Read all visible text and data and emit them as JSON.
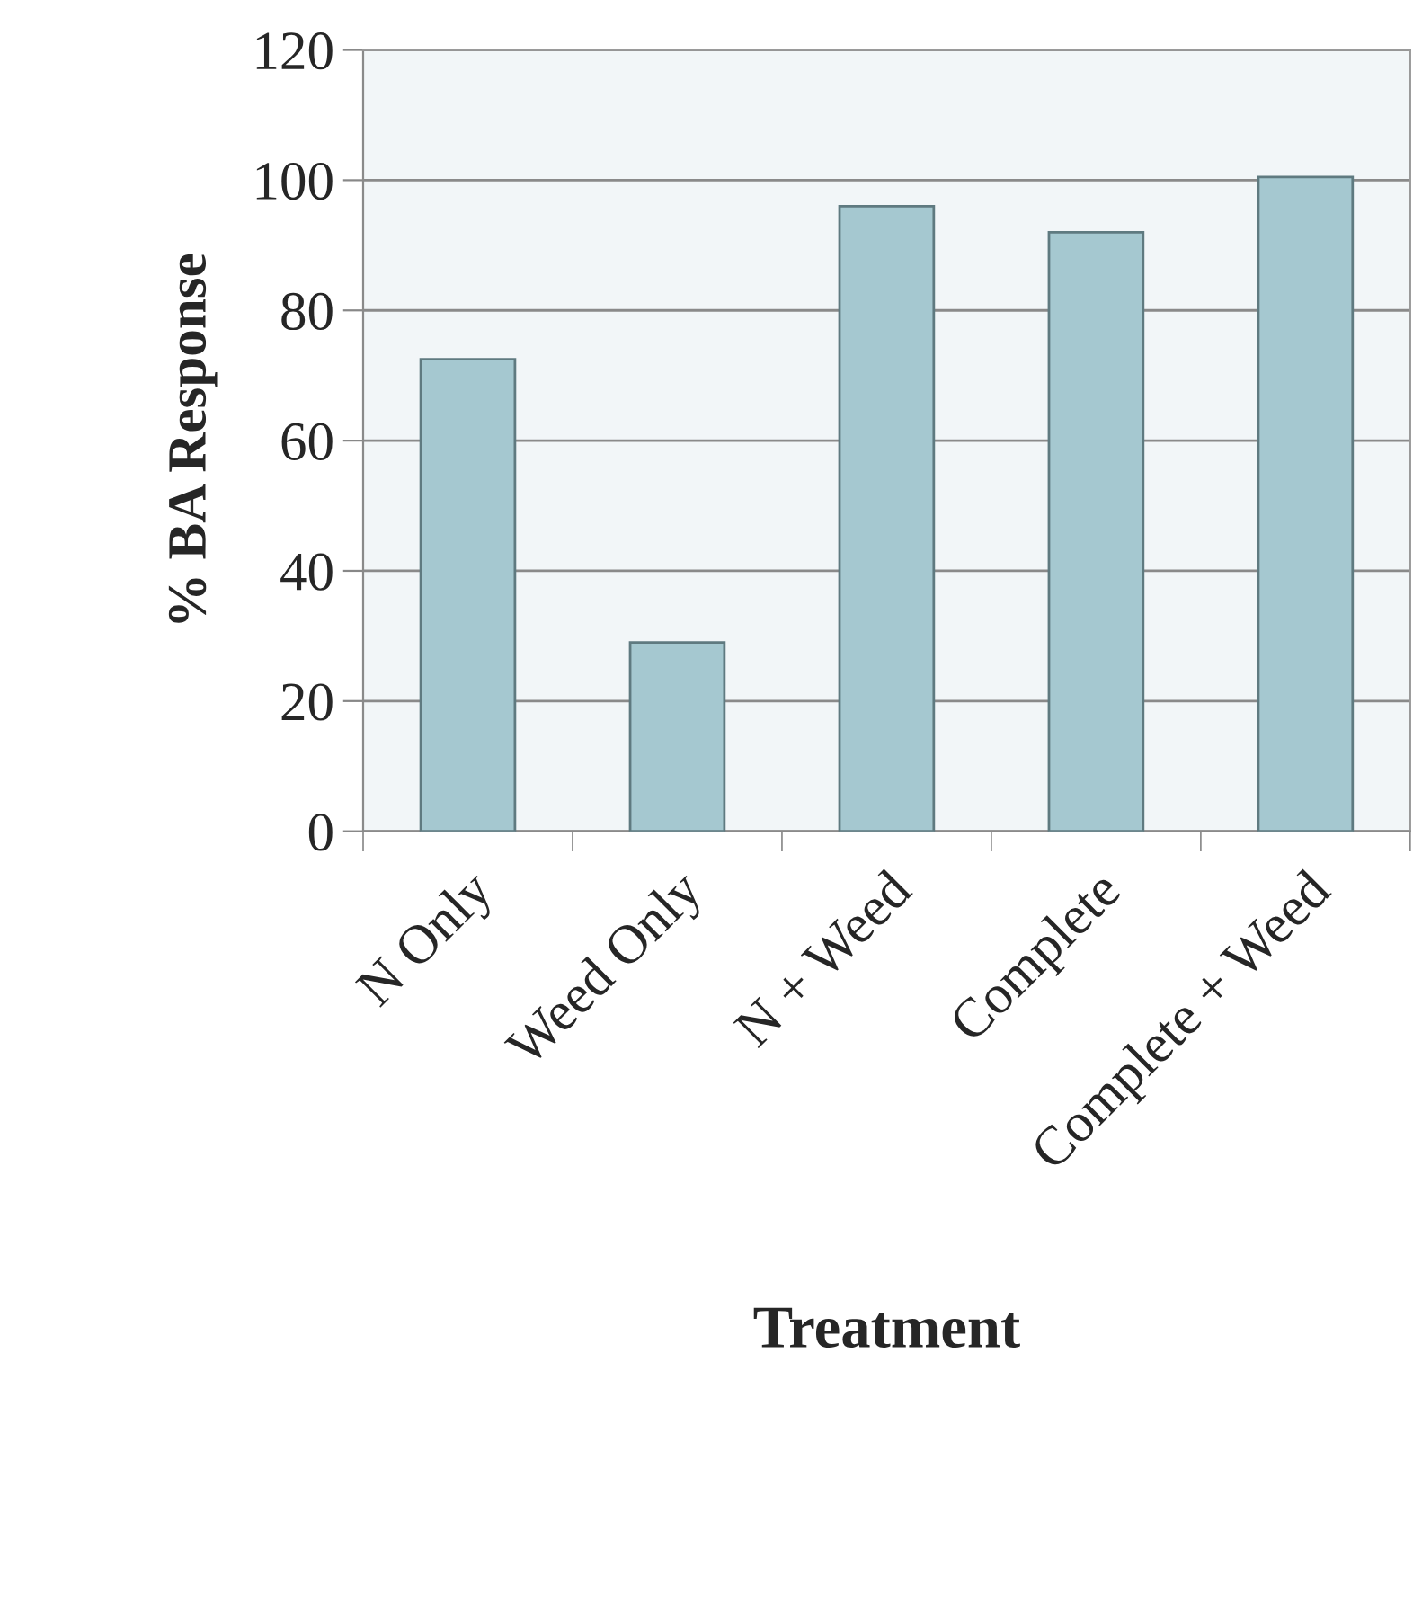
{
  "chart_data": {
    "type": "bar",
    "xlabel": "Treatment",
    "ylabel": "% BA Response",
    "categories": [
      "N Only",
      "Weed Only",
      "N + Weed",
      "Complete",
      "Complete + Weed"
    ],
    "values": [
      72.5,
      29,
      96,
      92,
      100.5
    ],
    "color": "#a5c8d0",
    "ylim": [
      0,
      120
    ],
    "yticks": [
      0,
      20,
      40,
      60,
      80,
      100,
      120
    ],
    "grid": "y"
  }
}
